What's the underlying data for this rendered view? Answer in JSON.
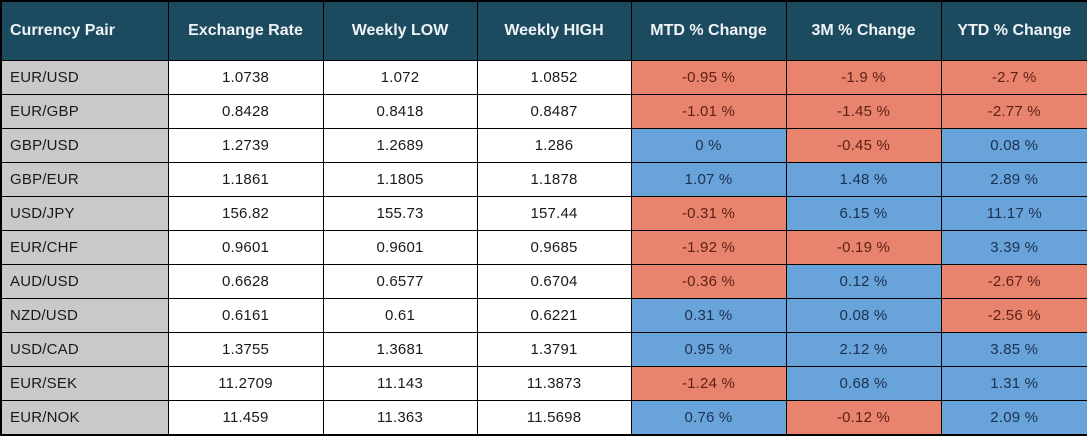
{
  "chart_data": {
    "type": "table",
    "title": "",
    "columns": [
      {
        "key": "pair",
        "label": "Currency Pair"
      },
      {
        "key": "exchange_rate",
        "label": "Exchange Rate"
      },
      {
        "key": "weekly_low",
        "label": "Weekly LOW"
      },
      {
        "key": "weekly_high",
        "label": "Weekly HIGH"
      },
      {
        "key": "mtd_change",
        "label": "MTD % Change"
      },
      {
        "key": "m3_change",
        "label": "3M % Change"
      },
      {
        "key": "ytd_change",
        "label": "YTD % Change"
      }
    ],
    "rows": [
      {
        "pair": "EUR/USD",
        "exchange_rate": "1.0738",
        "weekly_low": "1.072",
        "weekly_high": "1.0852",
        "mtd": {
          "text": "-0.95 %",
          "tone": "neg"
        },
        "m3": {
          "text": "-1.9 %",
          "tone": "neg"
        },
        "ytd": {
          "text": "-2.7 %",
          "tone": "neg"
        }
      },
      {
        "pair": "EUR/GBP",
        "exchange_rate": "0.8428",
        "weekly_low": "0.8418",
        "weekly_high": "0.8487",
        "mtd": {
          "text": "-1.01 %",
          "tone": "neg"
        },
        "m3": {
          "text": "-1.45 %",
          "tone": "neg"
        },
        "ytd": {
          "text": "-2.77 %",
          "tone": "neg"
        }
      },
      {
        "pair": "GBP/USD",
        "exchange_rate": "1.2739",
        "weekly_low": "1.2689",
        "weekly_high": "1.286",
        "mtd": {
          "text": "0 %",
          "tone": "pos"
        },
        "m3": {
          "text": "-0.45 %",
          "tone": "neg"
        },
        "ytd": {
          "text": "0.08 %",
          "tone": "pos"
        }
      },
      {
        "pair": "GBP/EUR",
        "exchange_rate": "1.1861",
        "weekly_low": "1.1805",
        "weekly_high": "1.1878",
        "mtd": {
          "text": "1.07 %",
          "tone": "pos"
        },
        "m3": {
          "text": "1.48 %",
          "tone": "pos"
        },
        "ytd": {
          "text": "2.89 %",
          "tone": "pos"
        }
      },
      {
        "pair": "USD/JPY",
        "exchange_rate": "156.82",
        "weekly_low": "155.73",
        "weekly_high": "157.44",
        "mtd": {
          "text": "-0.31 %",
          "tone": "neg"
        },
        "m3": {
          "text": "6.15 %",
          "tone": "pos"
        },
        "ytd": {
          "text": "11.17 %",
          "tone": "pos"
        }
      },
      {
        "pair": "EUR/CHF",
        "exchange_rate": "0.9601",
        "weekly_low": "0.9601",
        "weekly_high": "0.9685",
        "mtd": {
          "text": "-1.92 %",
          "tone": "neg"
        },
        "m3": {
          "text": "-0.19 %",
          "tone": "neg"
        },
        "ytd": {
          "text": "3.39 %",
          "tone": "pos"
        }
      },
      {
        "pair": "AUD/USD",
        "exchange_rate": "0.6628",
        "weekly_low": "0.6577",
        "weekly_high": "0.6704",
        "mtd": {
          "text": "-0.36 %",
          "tone": "neg"
        },
        "m3": {
          "text": "0.12 %",
          "tone": "pos"
        },
        "ytd": {
          "text": "-2.67 %",
          "tone": "neg"
        }
      },
      {
        "pair": "NZD/USD",
        "exchange_rate": "0.6161",
        "weekly_low": "0.61",
        "weekly_high": "0.6221",
        "mtd": {
          "text": "0.31 %",
          "tone": "pos"
        },
        "m3": {
          "text": "0.08 %",
          "tone": "pos"
        },
        "ytd": {
          "text": "-2.56 %",
          "tone": "neg"
        }
      },
      {
        "pair": "USD/CAD",
        "exchange_rate": "1.3755",
        "weekly_low": "1.3681",
        "weekly_high": "1.3791",
        "mtd": {
          "text": "0.95 %",
          "tone": "pos"
        },
        "m3": {
          "text": "2.12 %",
          "tone": "pos"
        },
        "ytd": {
          "text": "3.85 %",
          "tone": "pos"
        }
      },
      {
        "pair": "EUR/SEK",
        "exchange_rate": "11.2709",
        "weekly_low": "11.143",
        "weekly_high": "11.3873",
        "mtd": {
          "text": "-1.24 %",
          "tone": "neg"
        },
        "m3": {
          "text": "0.68 %",
          "tone": "pos"
        },
        "ytd": {
          "text": "1.31 %",
          "tone": "pos"
        }
      },
      {
        "pair": "EUR/NOK",
        "exchange_rate": "11.459",
        "weekly_low": "11.363",
        "weekly_high": "11.5698",
        "mtd": {
          "text": "0.76 %",
          "tone": "pos"
        },
        "m3": {
          "text": "-0.12 %",
          "tone": "neg"
        },
        "ytd": {
          "text": "2.09 %",
          "tone": "pos"
        }
      }
    ]
  },
  "colors": {
    "header_bg": "#1C4B60",
    "header_text": "#EFF3F5",
    "pair_column_bg": "#C9C9C9",
    "cell_bg": "#FFFFFF",
    "negative_bg": "#E8846D",
    "negative_text": "#5E1F15",
    "positive_bg": "#68A4DA",
    "positive_text": "#1C3050",
    "grid_border": "#000000"
  }
}
